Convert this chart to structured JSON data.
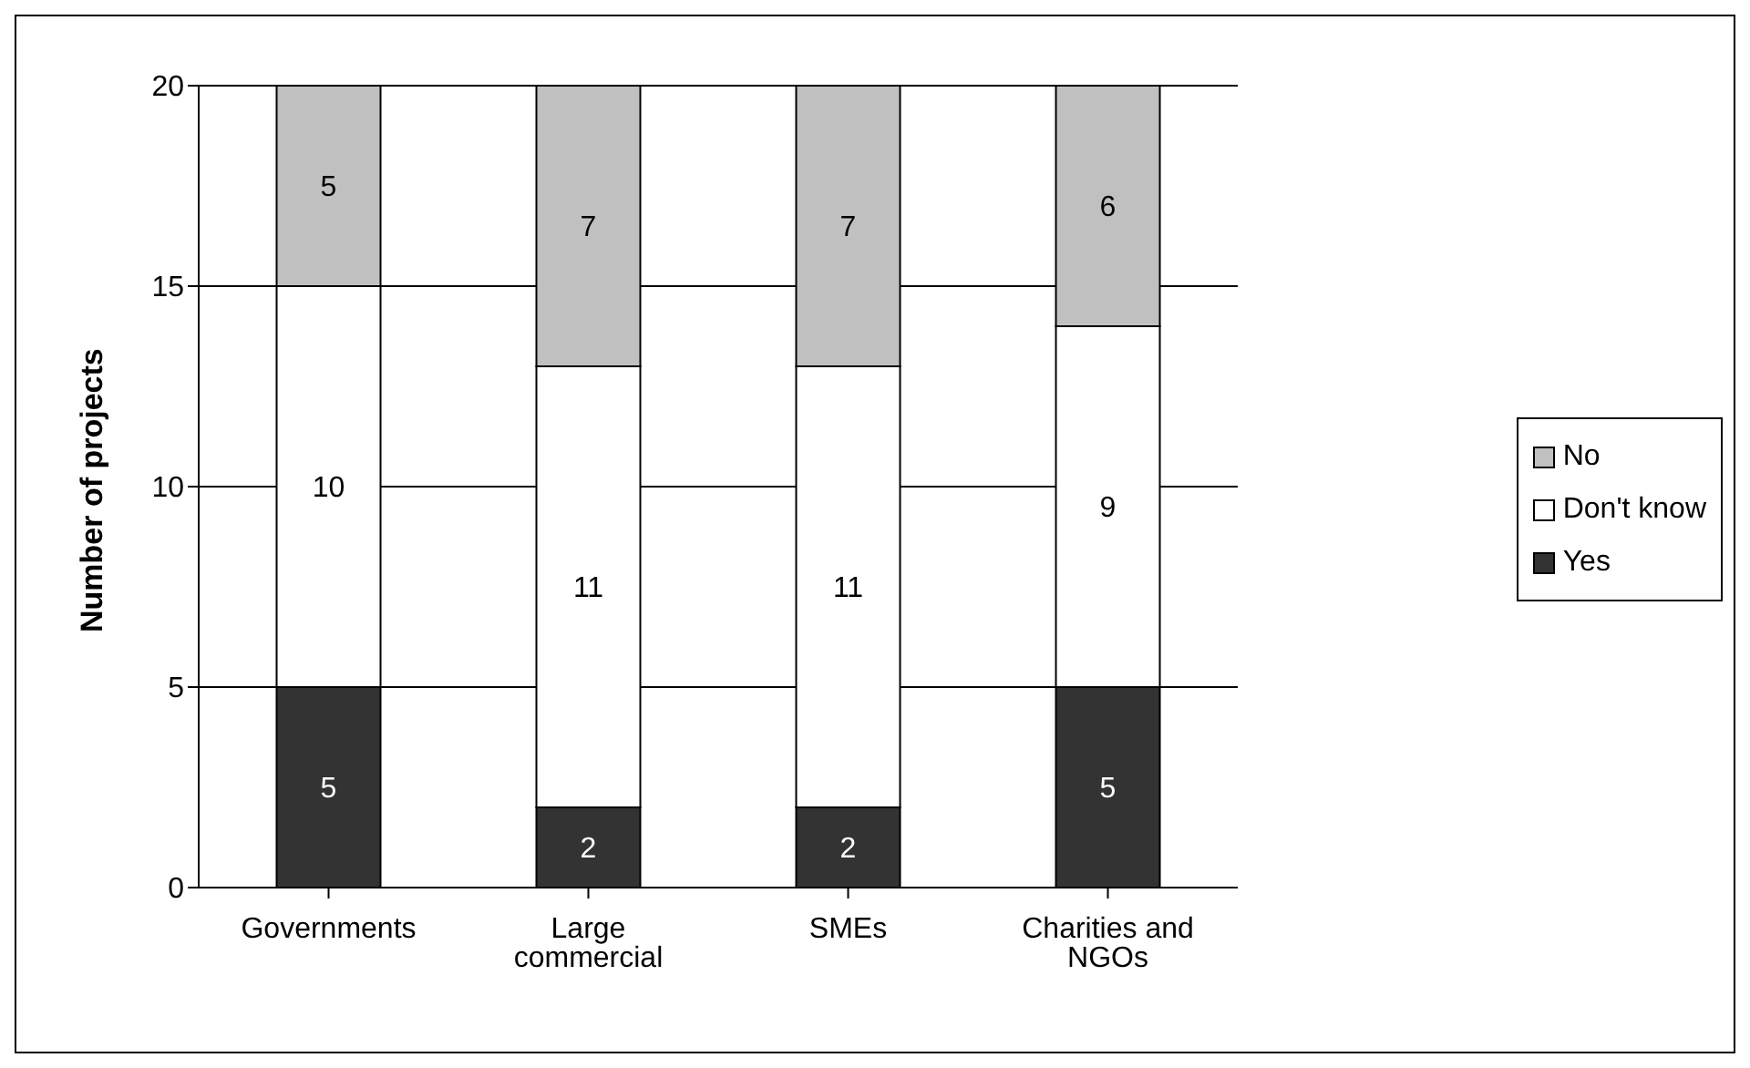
{
  "chart_data": {
    "type": "bar",
    "stacked": true,
    "ylabel": "Number of projects",
    "categories": [
      "Governments",
      "Large commercial",
      "SMEs",
      "Charities and NGOs"
    ],
    "series": [
      {
        "name": "Yes",
        "color": "#333333",
        "values": [
          5,
          2,
          2,
          5
        ]
      },
      {
        "name": "Don't know",
        "color": "#ffffff",
        "values": [
          10,
          11,
          11,
          9
        ]
      },
      {
        "name": "No",
        "color": "#c0c0c0",
        "values": [
          5,
          7,
          7,
          6
        ]
      }
    ],
    "ylim": [
      0,
      20
    ],
    "yticks": [
      0,
      5,
      10,
      15,
      20
    ],
    "grid": "y",
    "legend": "right",
    "data_labels": true
  }
}
